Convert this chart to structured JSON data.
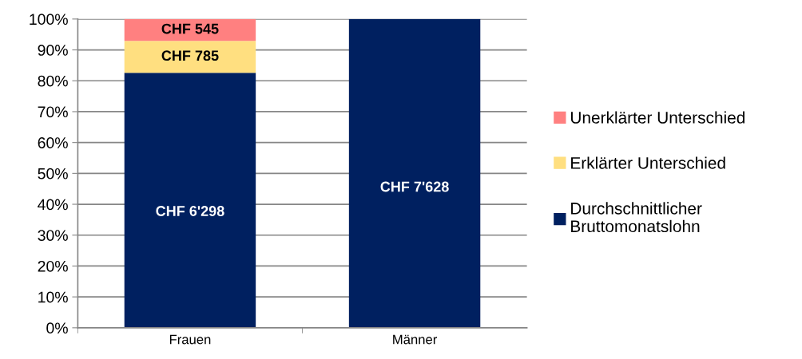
{
  "chart_data": {
    "type": "bar",
    "stacked": true,
    "categories": [
      "Frauen",
      "Männer"
    ],
    "series": [
      {
        "name": "Durchschnittlicher\nBruttomonatslohn",
        "color": "#002060",
        "values": [
          82.6,
          100
        ],
        "value_labels": [
          "CHF 6'298",
          "CHF 7'628"
        ]
      },
      {
        "name": "Erklärter Unterschied",
        "color": "#ffdf80",
        "values": [
          10.3,
          null
        ],
        "value_labels": [
          "CHF 785",
          null
        ]
      },
      {
        "name": "Unerklärter Unterschied",
        "color": "#ff8080",
        "values": [
          7.1,
          null
        ],
        "value_labels": [
          "CHF 545",
          null
        ]
      }
    ],
    "ylim": [
      0,
      100
    ],
    "yticks": [
      {
        "value": 0,
        "label": "0%"
      },
      {
        "value": 10,
        "label": "10%"
      },
      {
        "value": 20,
        "label": "20%"
      },
      {
        "value": 30,
        "label": "30%"
      },
      {
        "value": 40,
        "label": "40%"
      },
      {
        "value": 50,
        "label": "50%"
      },
      {
        "value": 60,
        "label": "60%"
      },
      {
        "value": 70,
        "label": "70%"
      },
      {
        "value": 80,
        "label": "80%"
      },
      {
        "value": 90,
        "label": "90%"
      },
      {
        "value": 100,
        "label": "100%"
      }
    ],
    "grid": "y",
    "legend": "right"
  }
}
